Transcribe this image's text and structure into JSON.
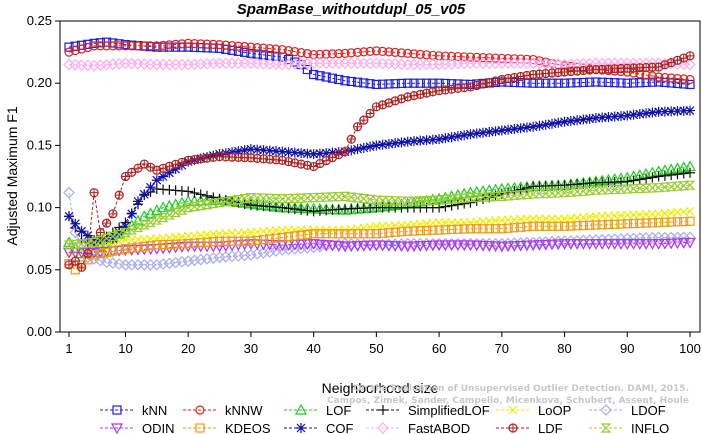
{
  "chart_data": {
    "type": "line",
    "title": "SpamBase_withoutdupl_05_v05",
    "xlabel": "Neighborhood size",
    "ylabel": "Adjusted Maximum F1",
    "xlim": [
      0,
      100
    ],
    "ylim": [
      0,
      0.25
    ],
    "x_ticks": [
      1,
      10,
      20,
      30,
      40,
      50,
      60,
      70,
      80,
      90,
      100
    ],
    "x_tick_labels": [
      "1",
      "10",
      "20",
      "30",
      "40",
      "50",
      "60",
      "70",
      "80",
      "90",
      "100"
    ],
    "y_ticks": [
      0,
      0.05,
      0.1,
      0.15,
      0.2,
      0.25
    ],
    "y_tick_labels": [
      "0.00",
      "0.05",
      "0.10",
      "0.15",
      "0.20",
      "0.25"
    ],
    "grid": false,
    "legend": "bottom",
    "watermark": [
      "Campos, Zimek, Sander, Campello, Micenkova, Schubert, Assent, Houle",
      "On the Evaluation of Unsupervised Outlier Detection. DAMI, 2015."
    ],
    "series": [
      {
        "name": "kNN",
        "color": "#1f1fdd",
        "marker": "square",
        "points": [
          [
            1,
            0.229
          ],
          [
            5,
            0.232
          ],
          [
            7,
            0.233
          ],
          [
            10,
            0.231
          ],
          [
            15,
            0.229
          ],
          [
            20,
            0.229
          ],
          [
            25,
            0.228
          ],
          [
            30,
            0.224
          ],
          [
            35,
            0.221
          ],
          [
            38,
            0.215
          ],
          [
            40,
            0.207
          ],
          [
            45,
            0.202
          ],
          [
            50,
            0.199
          ],
          [
            55,
            0.2
          ],
          [
            60,
            0.2
          ],
          [
            65,
            0.199
          ],
          [
            70,
            0.201
          ],
          [
            75,
            0.2
          ],
          [
            80,
            0.2
          ],
          [
            85,
            0.201
          ],
          [
            90,
            0.2
          ],
          [
            95,
            0.201
          ],
          [
            100,
            0.199
          ]
        ]
      },
      {
        "name": "kNNW",
        "color": "#dd2222",
        "marker": "circle",
        "points": [
          [
            1,
            0.225
          ],
          [
            5,
            0.23
          ],
          [
            10,
            0.23
          ],
          [
            15,
            0.23
          ],
          [
            20,
            0.232
          ],
          [
            25,
            0.231
          ],
          [
            30,
            0.229
          ],
          [
            35,
            0.227
          ],
          [
            40,
            0.223
          ],
          [
            45,
            0.224
          ],
          [
            50,
            0.226
          ],
          [
            55,
            0.224
          ],
          [
            60,
            0.222
          ],
          [
            65,
            0.221
          ],
          [
            70,
            0.22
          ],
          [
            75,
            0.219
          ],
          [
            80,
            0.214
          ],
          [
            85,
            0.211
          ],
          [
            90,
            0.209
          ],
          [
            95,
            0.205
          ],
          [
            100,
            0.203
          ]
        ]
      },
      {
        "name": "LOF",
        "color": "#22cc22",
        "marker": "triangle",
        "points": [
          [
            1,
            0.072
          ],
          [
            3,
            0.063
          ],
          [
            5,
            0.064
          ],
          [
            7,
            0.073
          ],
          [
            10,
            0.082
          ],
          [
            13,
            0.093
          ],
          [
            16,
            0.1
          ],
          [
            20,
            0.105
          ],
          [
            25,
            0.106
          ],
          [
            30,
            0.103
          ],
          [
            35,
            0.1
          ],
          [
            40,
            0.099
          ],
          [
            45,
            0.098
          ],
          [
            50,
            0.1
          ],
          [
            55,
            0.103
          ],
          [
            60,
            0.107
          ],
          [
            65,
            0.112
          ],
          [
            70,
            0.115
          ],
          [
            75,
            0.117
          ],
          [
            80,
            0.118
          ],
          [
            85,
            0.121
          ],
          [
            90,
            0.124
          ],
          [
            95,
            0.129
          ],
          [
            100,
            0.133
          ]
        ]
      },
      {
        "name": "SimplifiedLOF",
        "color": "#111111",
        "marker": "plus",
        "points": [
          [
            1,
            0.093
          ],
          [
            3,
            0.074
          ],
          [
            5,
            0.07
          ],
          [
            8,
            0.08
          ],
          [
            10,
            0.088
          ],
          [
            13,
            0.11
          ],
          [
            15,
            0.115
          ],
          [
            20,
            0.113
          ],
          [
            25,
            0.107
          ],
          [
            30,
            0.102
          ],
          [
            35,
            0.1
          ],
          [
            40,
            0.097
          ],
          [
            45,
            0.099
          ],
          [
            50,
            0.1
          ],
          [
            55,
            0.1
          ],
          [
            60,
            0.1
          ],
          [
            65,
            0.104
          ],
          [
            70,
            0.111
          ],
          [
            75,
            0.117
          ],
          [
            80,
            0.118
          ],
          [
            85,
            0.12
          ],
          [
            90,
            0.121
          ],
          [
            95,
            0.125
          ],
          [
            100,
            0.128
          ]
        ]
      },
      {
        "name": "LoOP",
        "color": "#eeee00",
        "marker": "x",
        "points": [
          [
            1,
            0.063
          ],
          [
            5,
            0.068
          ],
          [
            10,
            0.074
          ],
          [
            15,
            0.075
          ],
          [
            20,
            0.077
          ],
          [
            25,
            0.079
          ],
          [
            30,
            0.08
          ],
          [
            35,
            0.082
          ],
          [
            40,
            0.082
          ],
          [
            45,
            0.082
          ],
          [
            50,
            0.085
          ],
          [
            55,
            0.086
          ],
          [
            60,
            0.088
          ],
          [
            65,
            0.088
          ],
          [
            70,
            0.09
          ],
          [
            75,
            0.091
          ],
          [
            80,
            0.091
          ],
          [
            85,
            0.093
          ],
          [
            90,
            0.094
          ],
          [
            95,
            0.095
          ],
          [
            100,
            0.097
          ]
        ]
      },
      {
        "name": "LDOF",
        "color": "#aaaaee",
        "marker": "diamond",
        "points": [
          [
            1,
            0.112
          ],
          [
            2,
            0.08
          ],
          [
            4,
            0.06
          ],
          [
            7,
            0.056
          ],
          [
            10,
            0.054
          ],
          [
            15,
            0.054
          ],
          [
            20,
            0.057
          ],
          [
            25,
            0.06
          ],
          [
            30,
            0.062
          ],
          [
            35,
            0.066
          ],
          [
            40,
            0.068
          ],
          [
            45,
            0.071
          ],
          [
            50,
            0.07
          ],
          [
            55,
            0.071
          ],
          [
            60,
            0.071
          ],
          [
            65,
            0.071
          ],
          [
            70,
            0.071
          ],
          [
            75,
            0.072
          ],
          [
            80,
            0.073
          ],
          [
            85,
            0.074
          ],
          [
            90,
            0.075
          ],
          [
            95,
            0.076
          ],
          [
            100,
            0.076
          ]
        ]
      },
      {
        "name": "ODIN",
        "color": "#aa33ee",
        "marker": "triangle-down",
        "points": [
          [
            1,
            0.064
          ],
          [
            5,
            0.064
          ],
          [
            10,
            0.066
          ],
          [
            15,
            0.067
          ],
          [
            20,
            0.069
          ],
          [
            25,
            0.069
          ],
          [
            30,
            0.071
          ],
          [
            35,
            0.07
          ],
          [
            40,
            0.071
          ],
          [
            45,
            0.069
          ],
          [
            50,
            0.07
          ],
          [
            55,
            0.069
          ],
          [
            60,
            0.07
          ],
          [
            65,
            0.07
          ],
          [
            70,
            0.069
          ],
          [
            75,
            0.07
          ],
          [
            80,
            0.071
          ],
          [
            85,
            0.071
          ],
          [
            90,
            0.071
          ],
          [
            95,
            0.071
          ],
          [
            100,
            0.072
          ]
        ]
      },
      {
        "name": "KDEOS",
        "color": "#ee9911",
        "marker": "square",
        "points": [
          [
            1,
            0.055
          ],
          [
            2,
            0.05
          ],
          [
            5,
            0.062
          ],
          [
            10,
            0.067
          ],
          [
            15,
            0.07
          ],
          [
            20,
            0.071
          ],
          [
            25,
            0.073
          ],
          [
            30,
            0.073
          ],
          [
            35,
            0.076
          ],
          [
            40,
            0.079
          ],
          [
            45,
            0.079
          ],
          [
            50,
            0.079
          ],
          [
            55,
            0.081
          ],
          [
            60,
            0.082
          ],
          [
            65,
            0.083
          ],
          [
            70,
            0.083
          ],
          [
            75,
            0.085
          ],
          [
            80,
            0.085
          ],
          [
            85,
            0.086
          ],
          [
            90,
            0.087
          ],
          [
            95,
            0.088
          ],
          [
            100,
            0.089
          ]
        ]
      },
      {
        "name": "COF",
        "color": "#1111aa",
        "marker": "star",
        "points": [
          [
            1,
            0.093
          ],
          [
            3,
            0.081
          ],
          [
            5,
            0.074
          ],
          [
            8,
            0.075
          ],
          [
            10,
            0.085
          ],
          [
            12,
            0.105
          ],
          [
            15,
            0.122
          ],
          [
            18,
            0.131
          ],
          [
            20,
            0.137
          ],
          [
            25,
            0.143
          ],
          [
            30,
            0.147
          ],
          [
            35,
            0.145
          ],
          [
            40,
            0.143
          ],
          [
            45,
            0.145
          ],
          [
            50,
            0.15
          ],
          [
            55,
            0.153
          ],
          [
            60,
            0.155
          ],
          [
            65,
            0.159
          ],
          [
            70,
            0.162
          ],
          [
            75,
            0.165
          ],
          [
            80,
            0.169
          ],
          [
            85,
            0.172
          ],
          [
            90,
            0.174
          ],
          [
            95,
            0.177
          ],
          [
            100,
            0.178
          ]
        ]
      },
      {
        "name": "FastABOD",
        "color": "#ffaaee",
        "marker": "diamond",
        "points": [
          [
            1,
            0.215
          ],
          [
            5,
            0.214
          ],
          [
            10,
            0.216
          ],
          [
            15,
            0.215
          ],
          [
            20,
            0.215
          ],
          [
            25,
            0.216
          ],
          [
            30,
            0.216
          ],
          [
            35,
            0.215
          ],
          [
            40,
            0.216
          ],
          [
            45,
            0.216
          ],
          [
            50,
            0.216
          ],
          [
            55,
            0.215
          ],
          [
            60,
            0.215
          ],
          [
            65,
            0.216
          ],
          [
            70,
            0.216
          ],
          [
            75,
            0.216
          ],
          [
            80,
            0.215
          ],
          [
            85,
            0.216
          ],
          [
            90,
            0.216
          ],
          [
            95,
            0.216
          ],
          [
            100,
            0.215
          ]
        ]
      },
      {
        "name": "LDF",
        "color": "#aa2222",
        "marker": "circle-cross",
        "points": [
          [
            1,
            0.054
          ],
          [
            2,
            0.057
          ],
          [
            3,
            0.052
          ],
          [
            4,
            0.063
          ],
          [
            5,
            0.112
          ],
          [
            6,
            0.08
          ],
          [
            8,
            0.095
          ],
          [
            10,
            0.125
          ],
          [
            13,
            0.135
          ],
          [
            15,
            0.13
          ],
          [
            20,
            0.138
          ],
          [
            25,
            0.141
          ],
          [
            30,
            0.14
          ],
          [
            35,
            0.138
          ],
          [
            40,
            0.133
          ],
          [
            45,
            0.145
          ],
          [
            47,
            0.165
          ],
          [
            50,
            0.181
          ],
          [
            55,
            0.189
          ],
          [
            60,
            0.194
          ],
          [
            65,
            0.197
          ],
          [
            70,
            0.203
          ],
          [
            75,
            0.207
          ],
          [
            80,
            0.209
          ],
          [
            85,
            0.211
          ],
          [
            90,
            0.212
          ],
          [
            95,
            0.213
          ],
          [
            100,
            0.222
          ]
        ]
      },
      {
        "name": "INFLO",
        "color": "#99cc33",
        "marker": "hourglass",
        "points": [
          [
            1,
            0.07
          ],
          [
            5,
            0.072
          ],
          [
            10,
            0.08
          ],
          [
            15,
            0.09
          ],
          [
            20,
            0.1
          ],
          [
            25,
            0.104
          ],
          [
            30,
            0.108
          ],
          [
            35,
            0.107
          ],
          [
            40,
            0.108
          ],
          [
            45,
            0.109
          ],
          [
            50,
            0.106
          ],
          [
            55,
            0.105
          ],
          [
            60,
            0.106
          ],
          [
            65,
            0.108
          ],
          [
            70,
            0.109
          ],
          [
            75,
            0.111
          ],
          [
            80,
            0.112
          ],
          [
            85,
            0.114
          ],
          [
            90,
            0.115
          ],
          [
            95,
            0.116
          ],
          [
            100,
            0.118
          ]
        ]
      }
    ]
  }
}
